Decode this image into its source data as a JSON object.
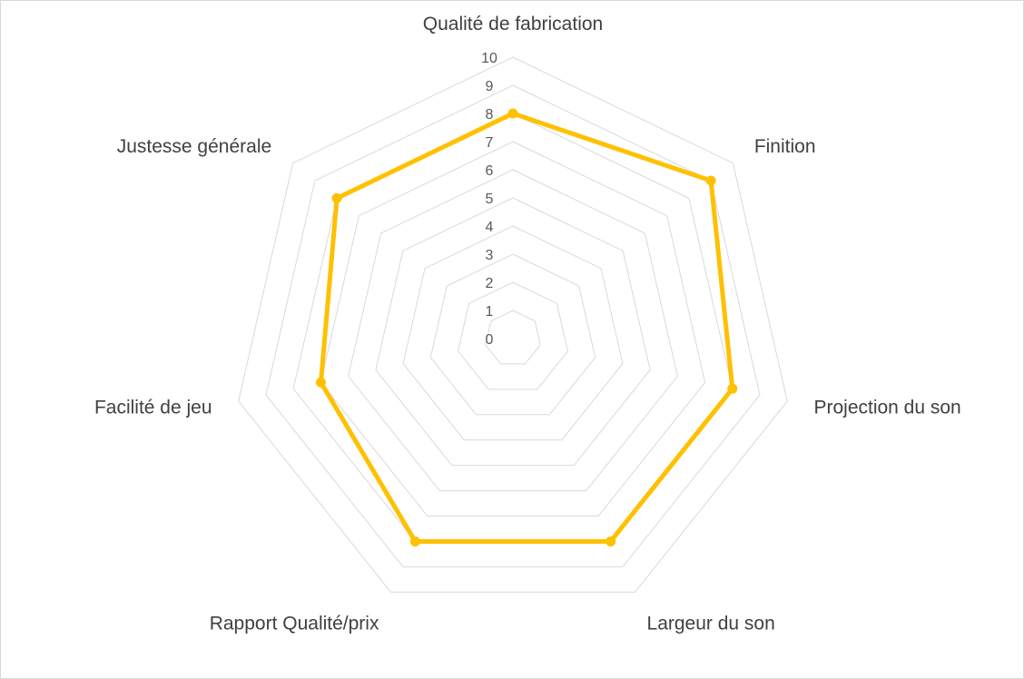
{
  "chart_data": {
    "type": "radar",
    "title": "",
    "categories": [
      "Qualité de fabrication",
      "Finition",
      "Projection du son",
      "Largeur du son",
      "Rapport Qualité/prix",
      "Facilité de jeu",
      "Justesse générale"
    ],
    "series": [
      {
        "name": "",
        "values": [
          8,
          9,
          8,
          8,
          8,
          7,
          8
        ],
        "color": "#FFC000"
      }
    ],
    "axis_range": [
      0,
      10
    ],
    "ticks": [
      "0",
      "1",
      "2",
      "3",
      "4",
      "5",
      "6",
      "7",
      "8",
      "9",
      "10"
    ],
    "grid": true,
    "grid_color": "#D9D9D9",
    "legend": "none"
  }
}
